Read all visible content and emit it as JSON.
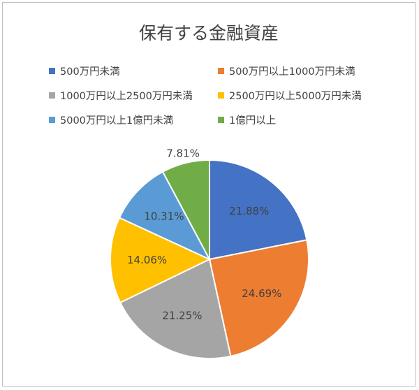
{
  "chart_data": {
    "type": "pie",
    "title": "保有する金融資産",
    "legend_position": "top",
    "categories": [
      "500万円未満",
      "500万円以上1000万円未満",
      "1000万円以上2500万円未満",
      "2500万円以上5000万円未満",
      "5000万円以上1億円未満",
      "1億円以上"
    ],
    "values": [
      21.88,
      24.69,
      21.25,
      14.06,
      10.31,
      7.81
    ],
    "labels": [
      "21.88%",
      "24.69%",
      "21.25%",
      "14.06%",
      "10.31%",
      "7.81%"
    ],
    "colors": [
      "#4472c4",
      "#ed7d31",
      "#a5a5a5",
      "#ffc000",
      "#5b9bd5",
      "#70ad47"
    ]
  }
}
